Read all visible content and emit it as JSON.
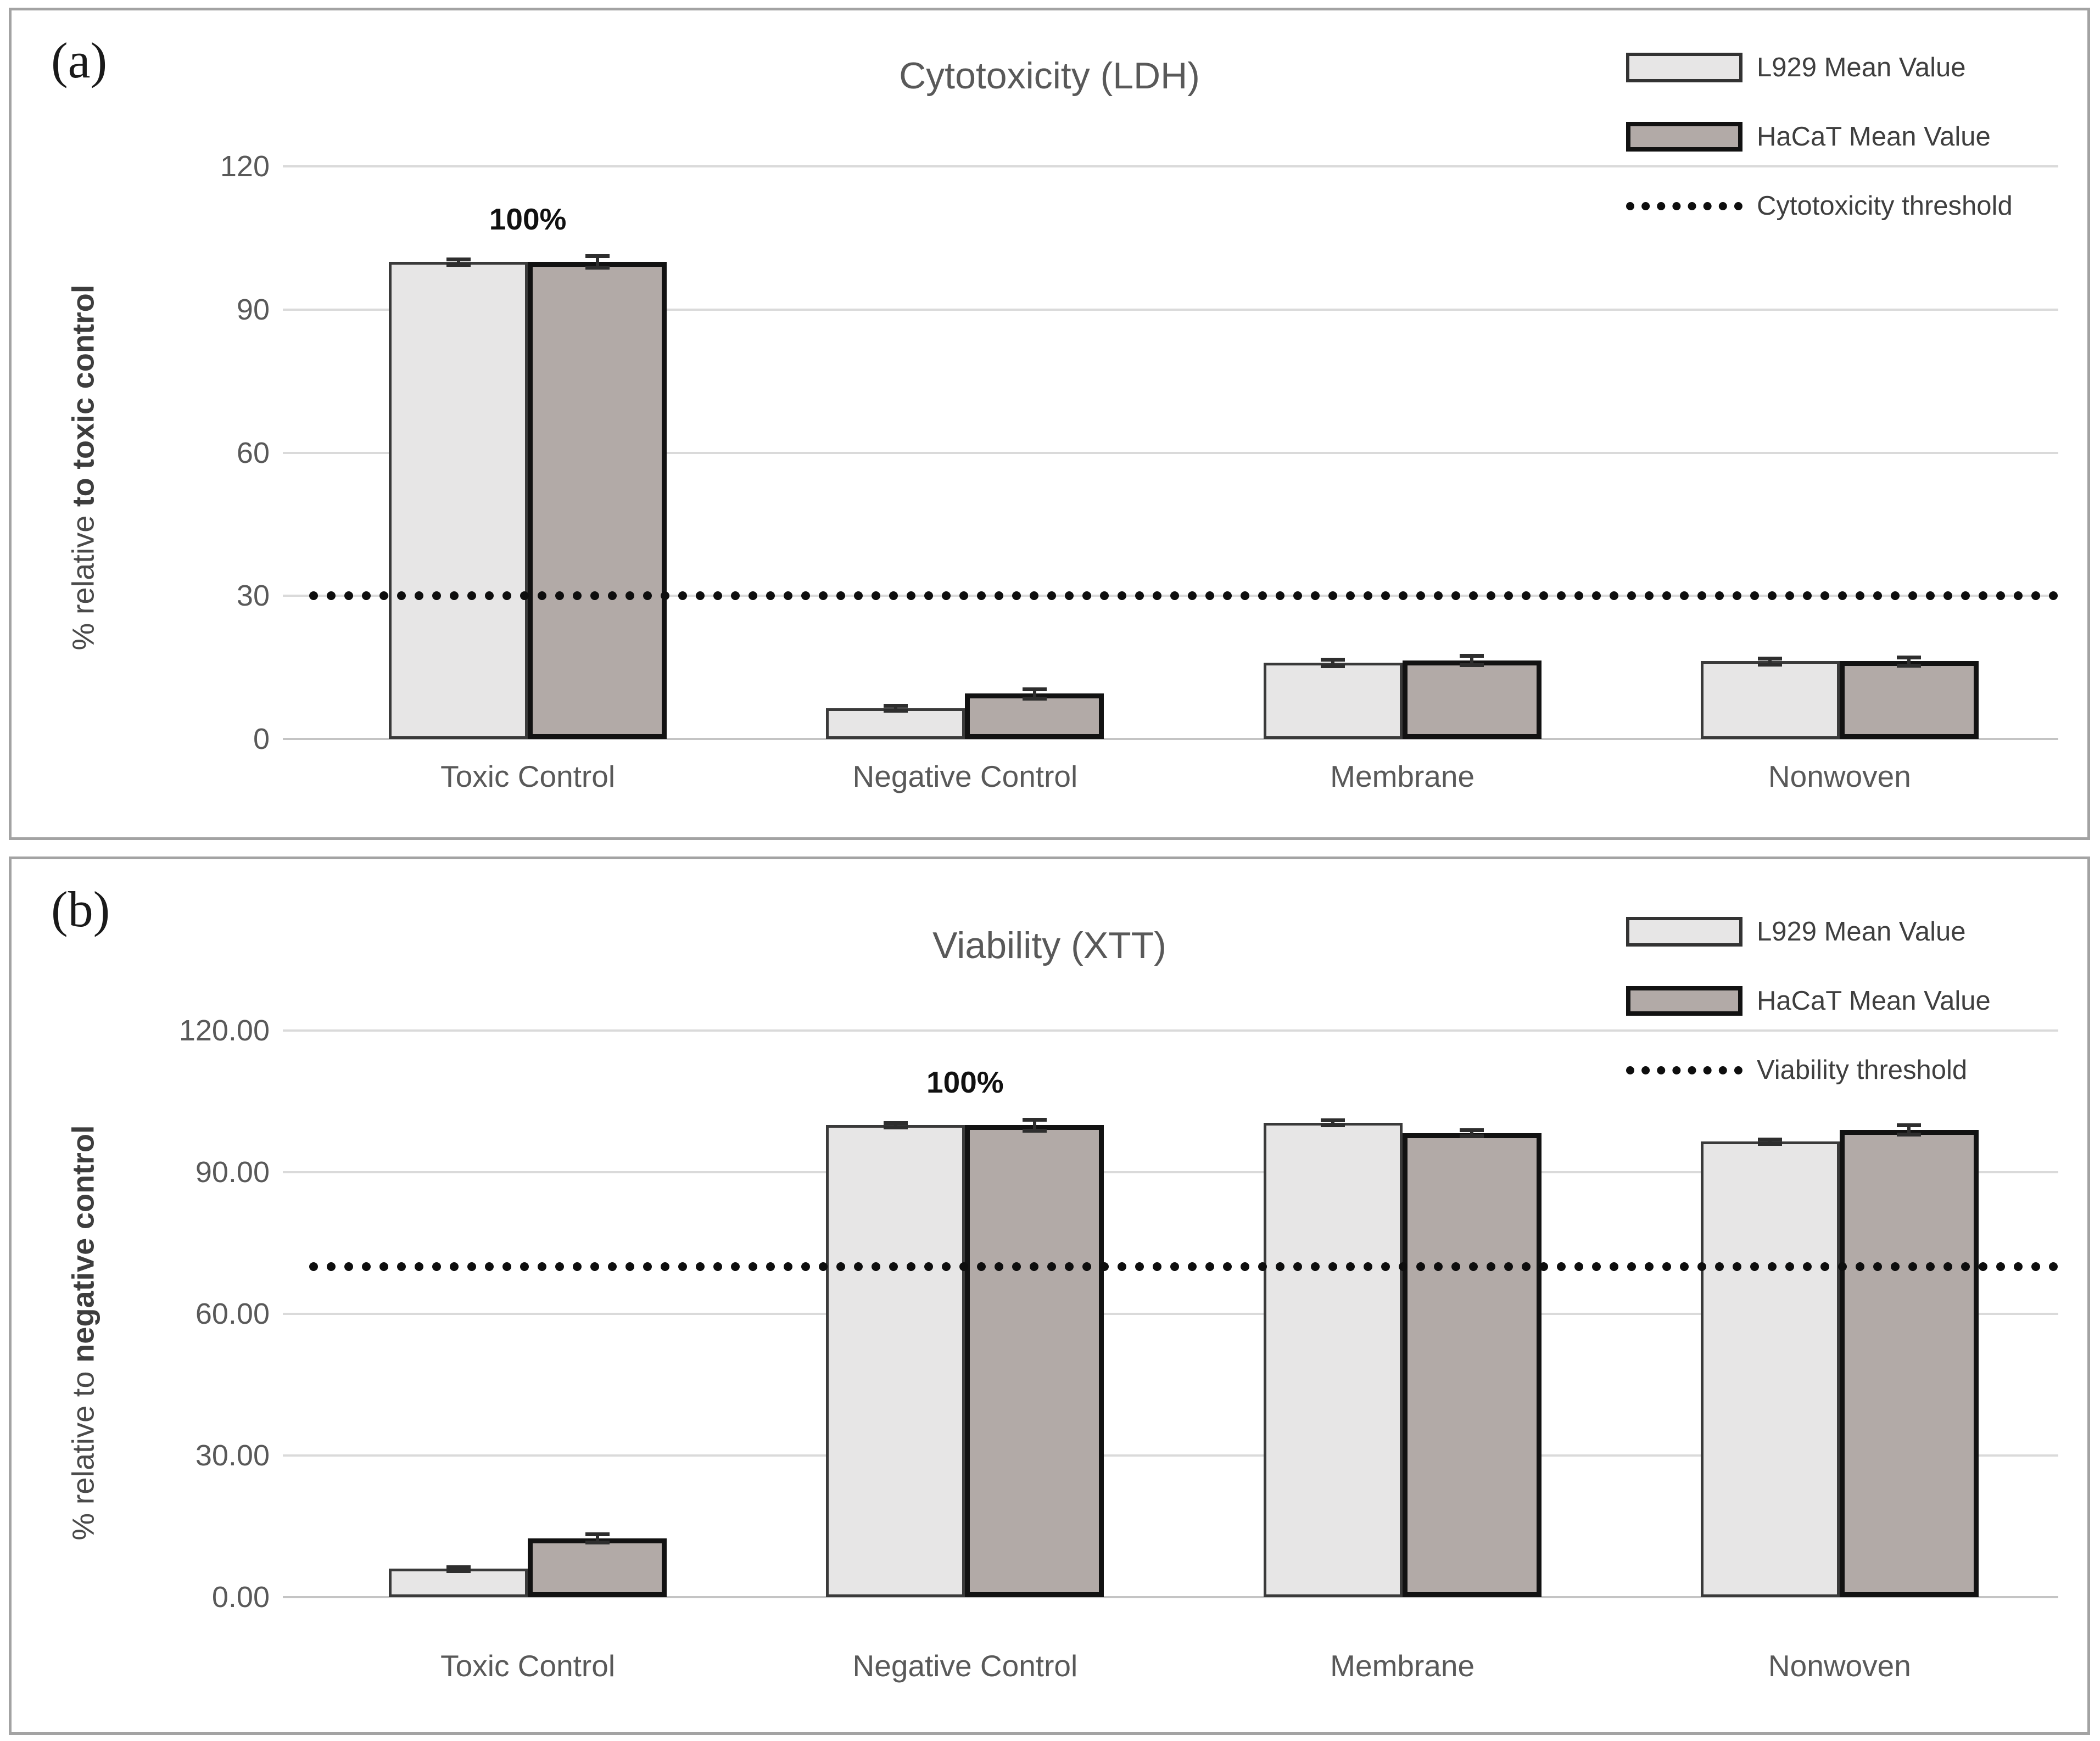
{
  "chart_data": [
    {
      "type": "bar",
      "panel_label": "(a)",
      "title": "Cytotoxicity (LDH)",
      "ylabel_regular": "% relative ",
      "ylabel_bold": "to toxic control",
      "ylim": [
        0,
        120
      ],
      "grid": true,
      "legend_position": "top-right",
      "yticks": [
        {
          "value": 0,
          "label": "0"
        },
        {
          "value": 30,
          "label": "30"
        },
        {
          "value": 60,
          "label": "60"
        },
        {
          "value": 90,
          "label": "90"
        },
        {
          "value": 120,
          "label": "120"
        }
      ],
      "categories": [
        "Toxic Control",
        "Negative Control",
        "Membrane",
        "Nonwoven"
      ],
      "series": [
        {
          "name": "L929 Mean Value",
          "fill": "#e7e6e6",
          "border": "#3a3a3a",
          "border_px": 5,
          "values": [
            100,
            6.5,
            16,
            16.3
          ],
          "errors": [
            0.6,
            0.5,
            0.7,
            0.6
          ]
        },
        {
          "name": "HaCaT Mean Value",
          "fill": "#b2aaa7",
          "border": "#121212",
          "border_px": 9,
          "values": [
            100,
            9.5,
            16.5,
            16.3
          ],
          "errors": [
            1.2,
            1.0,
            1.0,
            0.9
          ]
        }
      ],
      "threshold": {
        "label": "Cytotoxicity threshold",
        "value": 30
      },
      "annotation": {
        "text": "100%",
        "category_index": 0
      }
    },
    {
      "type": "bar",
      "panel_label": "(b)",
      "title": "Viability (XTT)",
      "ylabel_regular": "% relative to ",
      "ylabel_bold": "negative control",
      "ylim": [
        0,
        120
      ],
      "grid": true,
      "legend_position": "top-right",
      "yticks": [
        {
          "value": 0,
          "label": "0.00"
        },
        {
          "value": 30,
          "label": "30.00"
        },
        {
          "value": 60,
          "label": "60.00"
        },
        {
          "value": 90,
          "label": "90.00"
        },
        {
          "value": 120,
          "label": "120.00"
        }
      ],
      "categories": [
        "Toxic Control",
        "Negative Control",
        "Membrane",
        "Nonwoven"
      ],
      "series": [
        {
          "name": "L929 Mean Value",
          "fill": "#e7e6e6",
          "border": "#3a3a3a",
          "border_px": 5,
          "values": [
            6,
            100,
            100.5,
            96.5
          ],
          "errors": [
            0.4,
            0.5,
            0.5,
            0.5
          ]
        },
        {
          "name": "HaCaT Mean Value",
          "fill": "#b2aaa7",
          "border": "#121212",
          "border_px": 9,
          "values": [
            12.5,
            100,
            98.3,
            99
          ],
          "errors": [
            0.9,
            1.2,
            0.6,
            1.0
          ]
        }
      ],
      "threshold": {
        "label": "Viability threshold",
        "value": 70
      },
      "annotation": {
        "text": "100%",
        "category_index": 1
      }
    }
  ]
}
